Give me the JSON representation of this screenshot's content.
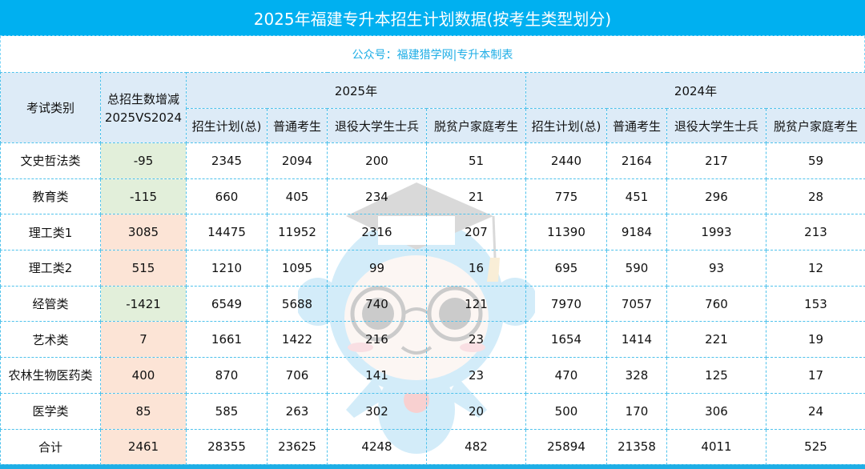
{
  "title": "2025年福建专升本招生计划数据(按考生类型划分)",
  "subtitle": "公众号：福建猎学网|专升本制表",
  "colors": {
    "title_bg": "#00b0f0",
    "subtitle_text": "#1eaee6",
    "header_bg": "#ddebf7",
    "decrease_bg": "#e2efda",
    "increase_bg": "#fce4d6",
    "grid_line": "#4fc2ec"
  },
  "header": {
    "category": "考试类别",
    "delta_line1": "总招生数增减",
    "delta_line2": "2025VS2024",
    "year_2025": "2025年",
    "year_2024": "2024年",
    "sub_columns": [
      "招生计划(总)",
      "普通考生",
      "退役大学生士兵",
      "脱贫户家庭考生"
    ]
  },
  "rows": [
    {
      "category": "文史哲法类",
      "delta": "-95",
      "y2025": [
        "2345",
        "2094",
        "200",
        "51"
      ],
      "y2024": [
        "2440",
        "2164",
        "217",
        "59"
      ]
    },
    {
      "category": "教育类",
      "delta": "-115",
      "y2025": [
        "660",
        "405",
        "234",
        "21"
      ],
      "y2024": [
        "775",
        "451",
        "296",
        "28"
      ]
    },
    {
      "category": "理工类1",
      "delta": "3085",
      "y2025": [
        "14475",
        "11952",
        "2316",
        "207"
      ],
      "y2024": [
        "11390",
        "9184",
        "1993",
        "213"
      ]
    },
    {
      "category": "理工类2",
      "delta": "515",
      "y2025": [
        "1210",
        "1095",
        "99",
        "16"
      ],
      "y2024": [
        "695",
        "590",
        "93",
        "12"
      ]
    },
    {
      "category": "经管类",
      "delta": "-1421",
      "y2025": [
        "6549",
        "5688",
        "740",
        "121"
      ],
      "y2024": [
        "7970",
        "7057",
        "760",
        "153"
      ]
    },
    {
      "category": "艺术类",
      "delta": "7",
      "y2025": [
        "1661",
        "1422",
        "216",
        "23"
      ],
      "y2024": [
        "1654",
        "1414",
        "221",
        "19"
      ]
    },
    {
      "category": "农林生物医药类",
      "delta": "400",
      "y2025": [
        "870",
        "706",
        "141",
        "23"
      ],
      "y2024": [
        "470",
        "328",
        "125",
        "17"
      ]
    },
    {
      "category": "医学类",
      "delta": "85",
      "y2025": [
        "585",
        "263",
        "302",
        "20"
      ],
      "y2024": [
        "500",
        "170",
        "306",
        "24"
      ]
    },
    {
      "category": "合计",
      "delta": "2461",
      "y2025": [
        "28355",
        "23625",
        "4248",
        "482"
      ],
      "y2024": [
        "25894",
        "21358",
        "4011",
        "525"
      ]
    }
  ],
  "watermark": {
    "icon": "mascot-graduate-icon"
  }
}
